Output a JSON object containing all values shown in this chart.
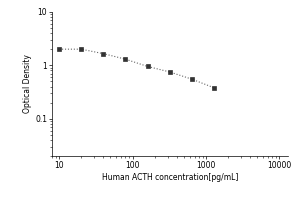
{
  "x_values": [
    10,
    20,
    40,
    80,
    160,
    320,
    640,
    1280
  ],
  "y_values": [
    2.0,
    2.0,
    1.65,
    1.3,
    0.95,
    0.75,
    0.55,
    0.38
  ],
  "xlabel": "Human ACTH concentration[pg/mL]",
  "ylabel": "Optical Density",
  "xlim": [
    8,
    13000
  ],
  "ylim": [
    0.02,
    10
  ],
  "xticks": [
    10,
    100,
    1000,
    10000
  ],
  "yticks": [
    0.1,
    1,
    10
  ],
  "line_color": "#666666",
  "marker_color": "#333333",
  "background_color": "#ffffff",
  "line_style": "dotted",
  "marker_style": "s",
  "marker_size": 3,
  "xlabel_fontsize": 5.5,
  "ylabel_fontsize": 5.5,
  "tick_fontsize": 5.5
}
